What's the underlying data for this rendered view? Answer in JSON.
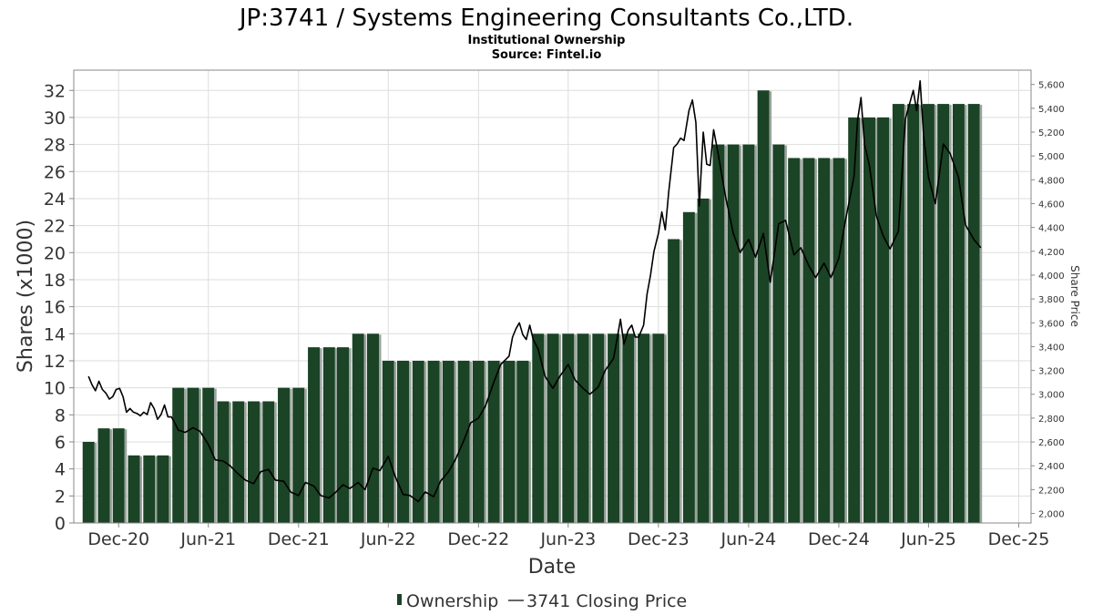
{
  "chart_data": {
    "type": "bar",
    "title": "JP:3741 / Systems Engineering Consultants Co.,LTD.",
    "subtitle": "Institutional Ownership",
    "source": "Source: Fintel.io",
    "xlabel": "Date",
    "ylabel": "Shares (x1000)",
    "y2label": "Share Price",
    "ylim": [
      0,
      33.5
    ],
    "y2lim": [
      1920,
      5720
    ],
    "xlim": [
      "2020-09-01",
      "2025-12-26"
    ],
    "grid": true,
    "legend_position": "bottom",
    "y_ticks": [
      0,
      2,
      4,
      6,
      8,
      10,
      12,
      14,
      16,
      18,
      20,
      22,
      24,
      26,
      28,
      30,
      32
    ],
    "y2_ticks": [
      "2,000",
      "2,200",
      "2,400",
      "2,600",
      "2,800",
      "3,000",
      "3,200",
      "3,400",
      "3,600",
      "3,800",
      "4,000",
      "4,200",
      "4,400",
      "4,600",
      "4,800",
      "5,000",
      "5,200",
      "5,400",
      "5,600"
    ],
    "x_ticks": [
      "Dec-20",
      "Jun-21",
      "Dec-21",
      "Jun-22",
      "Dec-22",
      "Jun-23",
      "Dec-23",
      "Jun-24",
      "Dec-24",
      "Jun-25",
      "Dec-25"
    ],
    "series": [
      {
        "name": "Ownership",
        "kind": "bar",
        "color": "#1b4325",
        "x": [
          "2020-10-01",
          "2020-11-01",
          "2020-12-01",
          "2021-01-01",
          "2021-02-01",
          "2021-03-01",
          "2021-04-01",
          "2021-05-01",
          "2021-06-01",
          "2021-07-01",
          "2021-08-01",
          "2021-09-01",
          "2021-10-01",
          "2021-11-01",
          "2021-12-01",
          "2022-01-01",
          "2022-02-01",
          "2022-03-01",
          "2022-04-01",
          "2022-05-01",
          "2022-06-01",
          "2022-07-01",
          "2022-08-01",
          "2022-09-01",
          "2022-10-01",
          "2022-11-01",
          "2022-12-01",
          "2023-01-01",
          "2023-02-01",
          "2023-03-01",
          "2023-04-01",
          "2023-05-01",
          "2023-06-01",
          "2023-07-01",
          "2023-08-01",
          "2023-09-01",
          "2023-10-01",
          "2023-11-01",
          "2023-12-01",
          "2024-01-01",
          "2024-02-01",
          "2024-03-01",
          "2024-04-01",
          "2024-05-01",
          "2024-06-01",
          "2024-07-01",
          "2024-08-01",
          "2024-09-01",
          "2024-10-01",
          "2024-11-01",
          "2024-12-01",
          "2025-01-01",
          "2025-02-01",
          "2025-03-01",
          "2025-04-01",
          "2025-05-01",
          "2025-06-01",
          "2025-07-01",
          "2025-08-01",
          "2025-09-01"
        ],
        "values": [
          6,
          7,
          7,
          5,
          5,
          5,
          10,
          10,
          10,
          9,
          9,
          9,
          9,
          10,
          10,
          13,
          13,
          13,
          14,
          14,
          12,
          12,
          12,
          12,
          12,
          12,
          12,
          12,
          12,
          12,
          14,
          14,
          14,
          14,
          14,
          14,
          14,
          14,
          14,
          21,
          23,
          24,
          28,
          28,
          28,
          32,
          28,
          27,
          27,
          27,
          27,
          30,
          30,
          30,
          31,
          31,
          31,
          31,
          31,
          31
        ]
      },
      {
        "name": "3741 Closing Price",
        "kind": "line",
        "axis": "right",
        "color": "#000000",
        "x": [
          "2020-10-01",
          "2020-10-08",
          "2020-10-15",
          "2020-10-22",
          "2020-10-29",
          "2020-11-05",
          "2020-11-12",
          "2020-11-19",
          "2020-11-26",
          "2020-12-03",
          "2020-12-10",
          "2020-12-17",
          "2020-12-24",
          "2020-12-31",
          "2021-01-07",
          "2021-01-14",
          "2021-01-21",
          "2021-01-28",
          "2021-02-04",
          "2021-02-11",
          "2021-02-18",
          "2021-02-25",
          "2021-03-04",
          "2021-03-11",
          "2021-03-18",
          "2021-03-25",
          "2021-04-01",
          "2021-04-15",
          "2021-05-01",
          "2021-05-15",
          "2021-06-01",
          "2021-06-15",
          "2021-07-01",
          "2021-07-15",
          "2021-08-01",
          "2021-08-15",
          "2021-09-01",
          "2021-09-15",
          "2021-10-01",
          "2021-10-15",
          "2021-11-01",
          "2021-11-15",
          "2021-12-01",
          "2021-12-15",
          "2022-01-01",
          "2022-01-15",
          "2022-02-01",
          "2022-02-15",
          "2022-03-01",
          "2022-03-15",
          "2022-04-01",
          "2022-04-15",
          "2022-05-01",
          "2022-05-15",
          "2022-06-01",
          "2022-06-15",
          "2022-07-01",
          "2022-07-15",
          "2022-08-01",
          "2022-08-15",
          "2022-09-01",
          "2022-09-15",
          "2022-10-01",
          "2022-10-15",
          "2022-11-01",
          "2022-11-15",
          "2022-12-01",
          "2022-12-15",
          "2023-01-01",
          "2023-01-15",
          "2023-02-01",
          "2023-02-08",
          "2023-02-15",
          "2023-02-22",
          "2023-03-01",
          "2023-03-08",
          "2023-03-15",
          "2023-03-22",
          "2023-04-01",
          "2023-04-15",
          "2023-05-01",
          "2023-05-15",
          "2023-06-01",
          "2023-06-15",
          "2023-07-01",
          "2023-07-15",
          "2023-08-01",
          "2023-08-15",
          "2023-09-01",
          "2023-09-08",
          "2023-09-15",
          "2023-09-22",
          "2023-10-01",
          "2023-10-08",
          "2023-10-15",
          "2023-10-22",
          "2023-11-01",
          "2023-11-08",
          "2023-11-15",
          "2023-11-22",
          "2023-12-01",
          "2023-12-08",
          "2023-12-15",
          "2023-12-22",
          "2024-01-01",
          "2024-01-08",
          "2024-01-15",
          "2024-01-22",
          "2024-02-01",
          "2024-02-08",
          "2024-02-15",
          "2024-02-22",
          "2024-03-01",
          "2024-03-08",
          "2024-03-15",
          "2024-03-22",
          "2024-04-01",
          "2024-04-15",
          "2024-05-01",
          "2024-05-15",
          "2024-06-01",
          "2024-06-15",
          "2024-07-01",
          "2024-07-15",
          "2024-08-01",
          "2024-08-15",
          "2024-09-01",
          "2024-09-15",
          "2024-10-01",
          "2024-10-15",
          "2024-11-01",
          "2024-11-15",
          "2024-12-01",
          "2024-12-15",
          "2025-01-01",
          "2025-01-08",
          "2025-01-15",
          "2025-01-22",
          "2025-02-01",
          "2025-02-15",
          "2025-03-01",
          "2025-03-15",
          "2025-04-01",
          "2025-04-15",
          "2025-05-01",
          "2025-05-08",
          "2025-05-15",
          "2025-05-22",
          "2025-06-01",
          "2025-06-15",
          "2025-07-01",
          "2025-07-15",
          "2025-08-01",
          "2025-08-15",
          "2025-09-01",
          "2025-09-15"
        ],
        "values": [
          3150,
          3080,
          3030,
          3110,
          3040,
          3010,
          2960,
          2980,
          3040,
          3050,
          2980,
          2850,
          2880,
          2850,
          2840,
          2820,
          2850,
          2830,
          2930,
          2880,
          2790,
          2830,
          2910,
          2810,
          2810,
          2760,
          2700,
          2680,
          2720,
          2690,
          2580,
          2450,
          2440,
          2400,
          2330,
          2280,
          2250,
          2350,
          2370,
          2280,
          2270,
          2180,
          2150,
          2260,
          2230,
          2150,
          2130,
          2180,
          2240,
          2210,
          2260,
          2200,
          2380,
          2360,
          2480,
          2310,
          2160,
          2150,
          2100,
          2180,
          2140,
          2270,
          2350,
          2450,
          2610,
          2760,
          2800,
          2900,
          3100,
          3250,
          3320,
          3480,
          3550,
          3600,
          3500,
          3460,
          3580,
          3460,
          3380,
          3150,
          3050,
          3150,
          3250,
          3120,
          3050,
          3000,
          3060,
          3200,
          3300,
          3460,
          3630,
          3420,
          3540,
          3580,
          3480,
          3480,
          3580,
          3840,
          4000,
          4200,
          4350,
          4530,
          4380,
          4700,
          5070,
          5100,
          5150,
          5130,
          5380,
          5470,
          5280,
          4580,
          5200,
          4930,
          4920,
          5220,
          5000,
          4660,
          4350,
          4190,
          4300,
          4150,
          4350,
          3940,
          4430,
          4460,
          4170,
          4230,
          4080,
          3980,
          4100,
          3980,
          4140,
          4470,
          4830,
          5300,
          5490,
          5100,
          4920,
          4500,
          4330,
          4220,
          4370,
          5310,
          5550,
          5380,
          5630,
          5170,
          4820,
          4600,
          5100,
          5020,
          4820,
          4420,
          4300,
          4230
        ]
      }
    ]
  }
}
